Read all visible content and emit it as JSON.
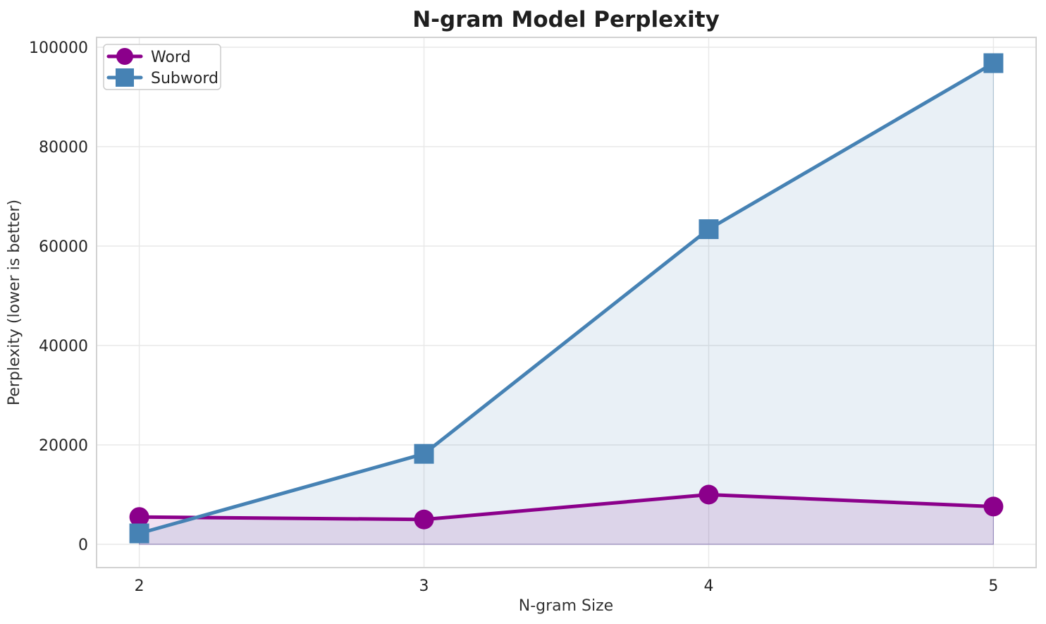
{
  "chart_data": {
    "type": "line",
    "title": "N-gram Model Perplexity",
    "xlabel": "N-gram Size",
    "ylabel": "Perplexity (lower is better)",
    "x": [
      2,
      3,
      4,
      5
    ],
    "x_tick_labels": [
      "2",
      "3",
      "4",
      "5"
    ],
    "y_ticks": [
      0,
      20000,
      40000,
      60000,
      80000,
      100000
    ],
    "y_tick_labels": [
      "0",
      "20000",
      "40000",
      "60000",
      "80000",
      "100000"
    ],
    "xlim": [
      1.85,
      5.15
    ],
    "ylim": [
      0,
      100000
    ],
    "grid": true,
    "legend_position": "upper-left",
    "series": [
      {
        "name": "Word",
        "marker": "circle",
        "color": "#8B008B",
        "fill_color": "rgba(139,0,139,0.12)",
        "fill_edge_color": "rgba(139,0,139,0.3)",
        "values": [
          5500,
          5000,
          10000,
          7600
        ]
      },
      {
        "name": "Subword",
        "marker": "square",
        "color": "#4682B4",
        "fill_color": "rgba(70,130,180,0.12)",
        "fill_edge_color": "rgba(70,130,180,0.3)",
        "values": [
          2200,
          18200,
          63400,
          96800
        ]
      }
    ],
    "background_color": "#FFFFFF",
    "grid_color": "#E8E8E8",
    "border_color": "#D2D2D2",
    "text_color": "#262626"
  }
}
